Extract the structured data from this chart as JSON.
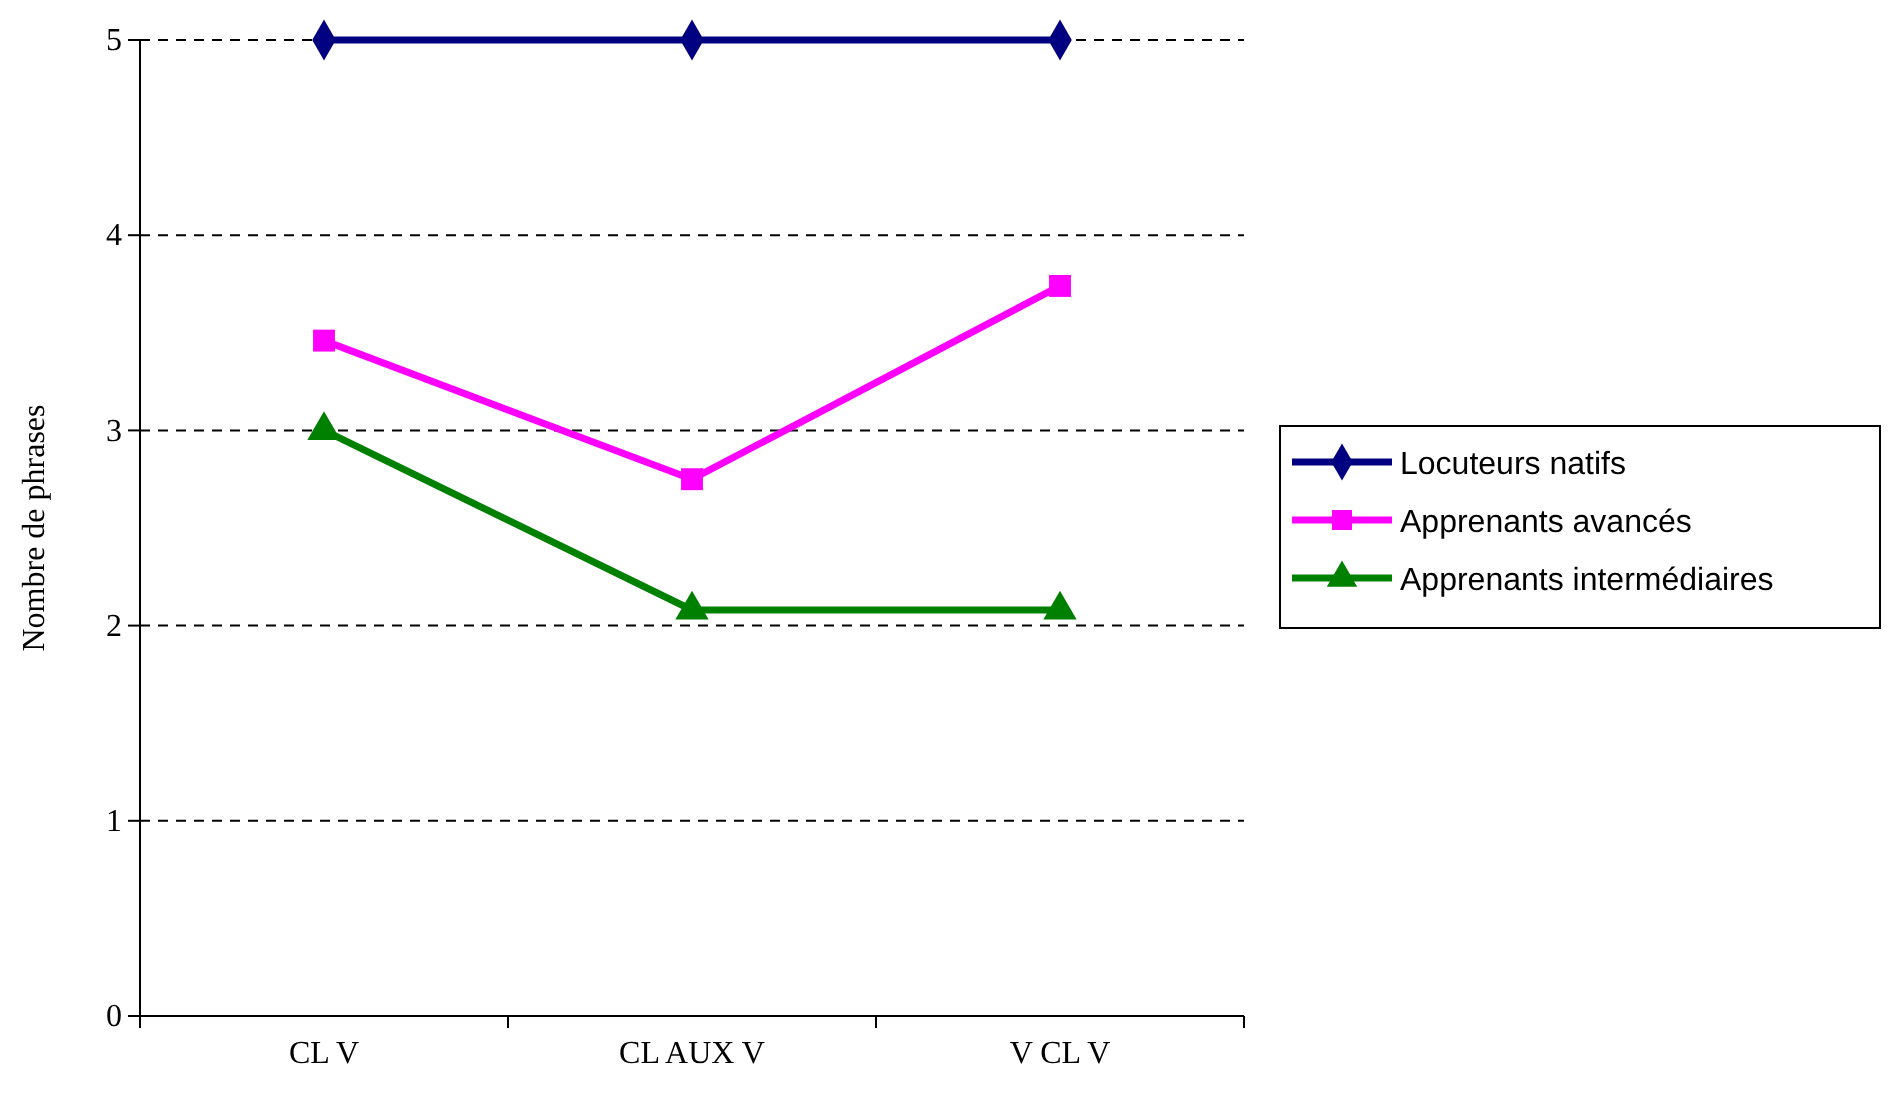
{
  "chart_data": {
    "type": "line",
    "ylabel": "Nombre de phrases",
    "categories": [
      "CL V",
      "CL AUX V",
      "V CL V"
    ],
    "series": [
      {
        "name": "Locuteurs natifs",
        "color": "#000080",
        "marker": "diamond",
        "values": [
          5,
          5,
          5
        ]
      },
      {
        "name": "Apprenants avancés",
        "color": "#ff00ff",
        "marker": "square",
        "values": [
          3.46,
          2.75,
          3.74
        ]
      },
      {
        "name": "Apprenants intermédiaires",
        "color": "#008000",
        "marker": "triangle",
        "values": [
          3,
          2.08,
          2.08
        ]
      }
    ],
    "ylim": [
      0,
      5
    ],
    "yticks": [
      0,
      1,
      2,
      3,
      4,
      5
    ],
    "grid": "y",
    "legend": "right",
    "line_style": "solid"
  }
}
